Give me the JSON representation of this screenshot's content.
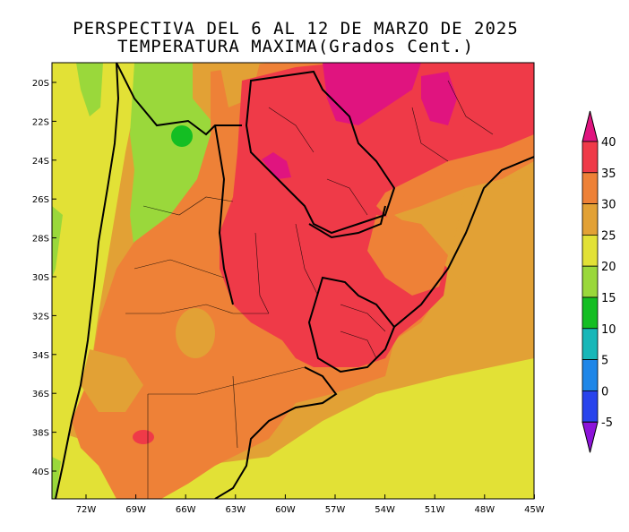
{
  "title": {
    "line1": "PERSPECTIVA DEL 6 AL 12 DE MARZO DE 2025",
    "line2": "TEMPERATURA MAXIMA(Grados Cent.)"
  },
  "map": {
    "lat_labels": [
      "20S",
      "22S",
      "24S",
      "26S",
      "28S",
      "30S",
      "32S",
      "34S",
      "36S",
      "38S",
      "40S"
    ],
    "lon_labels": [
      "72W",
      "69W",
      "66W",
      "63W",
      "60W",
      "57W",
      "54W",
      "51W",
      "48W",
      "45W"
    ],
    "extent": {
      "lon": [
        -74.5,
        -45
      ],
      "lat": [
        -19,
        -41.5
      ]
    }
  },
  "colorbar": {
    "labels": [
      "40",
      "35",
      "30",
      "25",
      "20",
      "15",
      "10",
      "5",
      "0",
      "-5"
    ],
    "colors": {
      "above_40": "#e0147f",
      "35_40": "#ef3a48",
      "30_35": "#ee8137",
      "25_30": "#e2a135",
      "20_25": "#e2e136",
      "15_20": "#9ad83b",
      "10_15": "#14be23",
      "5_10": "#18b7b8",
      "0_5": "#1e86e8",
      "-5_0": "#2843ec",
      "below_-5": "#8c13d9"
    }
  }
}
